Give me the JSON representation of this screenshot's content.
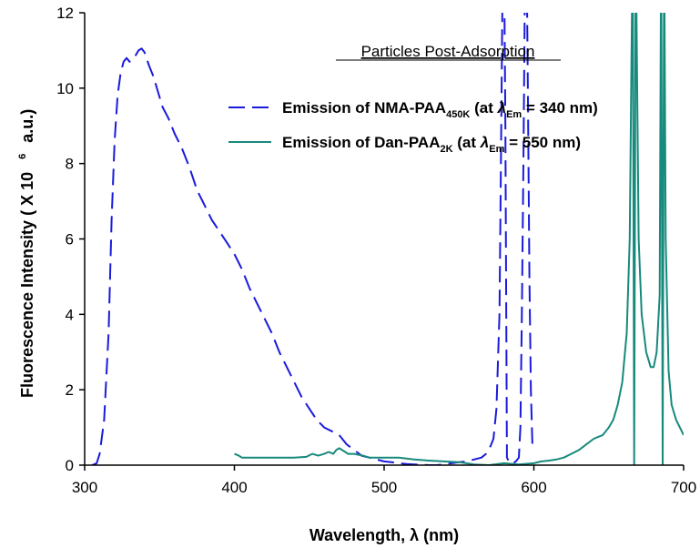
{
  "chart_data": {
    "type": "line",
    "title": "",
    "annotation": "Particles Post-Adsorption",
    "xlabel": "Wavelength, λ (nm)",
    "ylabel": "Fluorescence Intensity ( X 10",
    "ylabel_exponent": "6",
    "ylabel_tail": "a.u.)",
    "xlim": [
      300,
      700
    ],
    "ylim": [
      0,
      12
    ],
    "xticks": [
      300,
      400,
      500,
      600,
      700
    ],
    "yticks": [
      0,
      2,
      4,
      6,
      8,
      10,
      12
    ],
    "grid": false,
    "legend_position": "upper-right",
    "series": [
      {
        "name_parts": {
          "main": "Emission of NMA-PAA",
          "sub": "450K",
          "mid": " (at ",
          "lambda": "λ",
          "lsub": "Em",
          "tail": " = 340 nm)"
        },
        "color": "#1a1adb",
        "style": "dashed",
        "x": [
          305,
          308,
          310,
          313,
          316,
          318,
          320,
          322,
          324,
          326,
          328,
          330,
          333,
          336,
          338,
          340,
          343,
          346,
          349,
          352,
          356,
          360,
          365,
          370,
          375,
          380,
          385,
          390,
          395,
          400,
          405,
          410,
          415,
          420,
          425,
          430,
          435,
          440,
          445,
          450,
          455,
          460,
          465,
          470,
          475,
          480,
          485,
          490,
          495,
          500,
          505,
          510,
          515,
          520,
          525,
          530,
          535,
          540,
          545,
          550,
          555,
          560,
          565,
          568,
          571,
          573,
          575,
          577,
          578,
          579,
          580,
          581,
          582,
          584,
          586,
          588,
          590,
          591,
          592,
          593,
          594,
          595,
          596,
          597,
          598,
          599,
          600
        ],
        "y": [
          0,
          0.05,
          0.3,
          1.2,
          3.5,
          6.5,
          8.6,
          9.8,
          10.4,
          10.7,
          10.8,
          10.7,
          10.8,
          11.0,
          11.05,
          10.95,
          10.6,
          10.3,
          9.9,
          9.5,
          9.2,
          8.8,
          8.4,
          7.9,
          7.3,
          6.9,
          6.5,
          6.2,
          5.9,
          5.6,
          5.2,
          4.7,
          4.3,
          3.9,
          3.5,
          3.0,
          2.6,
          2.2,
          1.8,
          1.5,
          1.2,
          1.0,
          0.9,
          0.8,
          0.55,
          0.4,
          0.25,
          0.2,
          0.15,
          0.1,
          0.08,
          0.05,
          0.03,
          0.02,
          0.01,
          0.0,
          0.0,
          0.02,
          0.05,
          0.08,
          0.1,
          0.15,
          0.2,
          0.3,
          0.5,
          0.7,
          1.5,
          4.0,
          8.0,
          12.5,
          14,
          9,
          0.2,
          0.05,
          0.05,
          0.1,
          0.2,
          1.0,
          4.0,
          8.0,
          12.5,
          14,
          10,
          5,
          2.0,
          0.5,
          0.5
        ]
      },
      {
        "name_parts": {
          "main": "Emission of Dan-PAA",
          "sub": "2K",
          "mid": " (at ",
          "lambda": "λ",
          "lsub": "Em",
          "tail": " = 550 nm)"
        },
        "color": "#178a7c",
        "style": "solid",
        "x": [
          400,
          403,
          405,
          410,
          420,
          430,
          440,
          448,
          452,
          456,
          460,
          463,
          466,
          468,
          470,
          472,
          474,
          476,
          480,
          486,
          490,
          500,
          510,
          520,
          530,
          540,
          550,
          555,
          560,
          570,
          580,
          590,
          600,
          605,
          610,
          615,
          620,
          625,
          630,
          635,
          640,
          643,
          646,
          650,
          653,
          656,
          659,
          662,
          664,
          665,
          666,
          667,
          668,
          670,
          672,
          675,
          678,
          680,
          682,
          684,
          685,
          686,
          687,
          688,
          690,
          692,
          695,
          700
        ],
        "y": [
          0.3,
          0.25,
          0.2,
          0.2,
          0.2,
          0.2,
          0.2,
          0.22,
          0.3,
          0.25,
          0.3,
          0.35,
          0.3,
          0.4,
          0.45,
          0.4,
          0.35,
          0.3,
          0.3,
          0.25,
          0.2,
          0.2,
          0.2,
          0.15,
          0.12,
          0.1,
          0.08,
          0.05,
          0.02,
          0.0,
          0.05,
          0.02,
          0.05,
          0.1,
          0.12,
          0.15,
          0.2,
          0.3,
          0.4,
          0.55,
          0.7,
          0.75,
          0.8,
          1.0,
          1.2,
          1.6,
          2.2,
          3.5,
          6.0,
          10.0,
          14,
          0,
          14,
          6.0,
          4.0,
          3.0,
          2.6,
          2.6,
          3.0,
          4.5,
          14,
          0,
          14,
          6.0,
          2.5,
          1.6,
          1.2,
          0.8
        ]
      }
    ]
  }
}
